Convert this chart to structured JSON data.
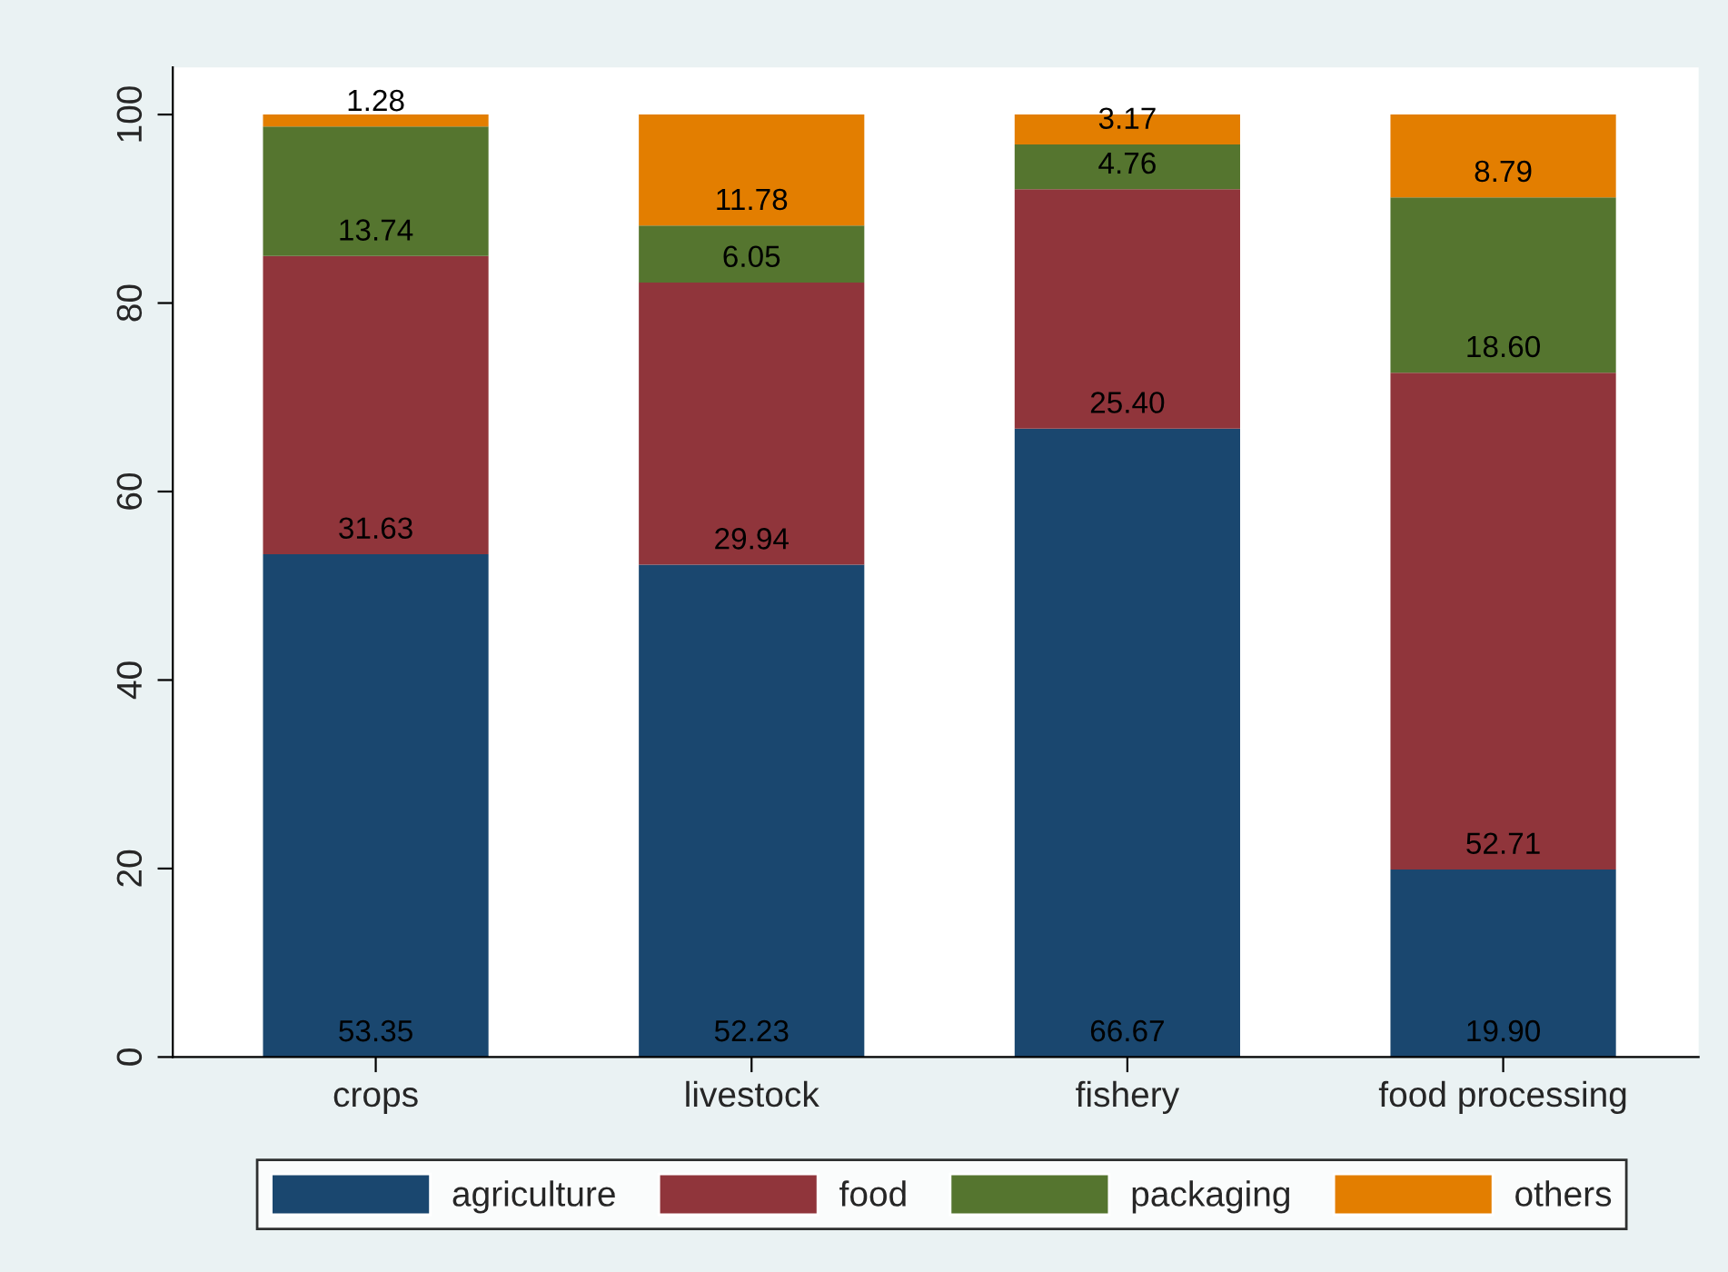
{
  "chart_data": {
    "type": "bar",
    "stacked": true,
    "categories": [
      "crops",
      "livestock",
      "fishery",
      "food processing"
    ],
    "series": [
      {
        "name": "agriculture",
        "color": "#1a476f",
        "values": [
          53.35,
          52.23,
          66.67,
          19.9
        ]
      },
      {
        "name": "food",
        "color": "#90353b",
        "values": [
          31.63,
          29.94,
          25.4,
          52.71
        ]
      },
      {
        "name": "packaging",
        "color": "#55752f",
        "values": [
          13.74,
          6.05,
          4.76,
          18.6
        ]
      },
      {
        "name": "others",
        "color": "#e37e00",
        "values": [
          1.28,
          11.78,
          3.17,
          8.79
        ]
      }
    ],
    "value_labels": [
      [
        "53.35",
        "52.23",
        "66.67",
        "19.90"
      ],
      [
        "31.63",
        "29.94",
        "25.40",
        "52.71"
      ],
      [
        "13.74",
        "6.05",
        "4.76",
        "18.60"
      ],
      [
        "1.28",
        "11.78",
        "3.17",
        "8.79"
      ]
    ],
    "ylim": [
      0,
      105
    ],
    "yticks": [
      0,
      20,
      40,
      60,
      80,
      100
    ],
    "grid": false,
    "legend": "bottom"
  }
}
